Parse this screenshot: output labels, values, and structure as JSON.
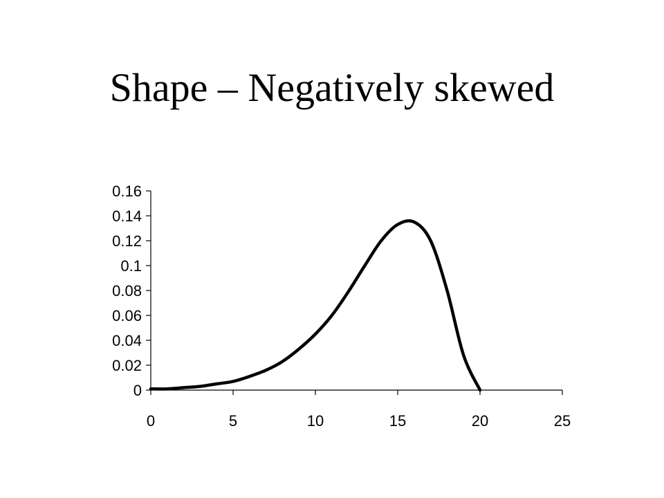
{
  "slide": {
    "title": "Shape – Negatively skewed"
  },
  "chart_data": {
    "type": "line",
    "title": "",
    "xlabel": "",
    "ylabel": "",
    "xlim": [
      0,
      25
    ],
    "ylim": [
      0,
      0.16
    ],
    "x_ticks": [
      0,
      5,
      10,
      15,
      20,
      25
    ],
    "x_tick_labels": [
      "0",
      "5",
      "10",
      "15",
      "20",
      "25"
    ],
    "y_ticks": [
      0,
      0.02,
      0.04,
      0.06,
      0.08,
      0.1,
      0.12,
      0.14,
      0.16
    ],
    "y_tick_labels": [
      "0",
      "0.02",
      "0.04",
      "0.06",
      "0.08",
      "0.1",
      "0.12",
      "0.14",
      "0.16"
    ],
    "grid": false,
    "legend": "none",
    "line_color": "#000000",
    "series": [
      {
        "x": [
          0,
          1,
          2,
          3,
          4,
          5,
          6,
          7,
          8,
          9,
          10,
          11,
          12,
          13,
          14,
          15,
          16,
          17,
          18,
          19,
          20
        ],
        "values": [
          0.001,
          0.001,
          0.002,
          0.003,
          0.005,
          0.007,
          0.011,
          0.016,
          0.023,
          0.033,
          0.045,
          0.06,
          0.079,
          0.1,
          0.12,
          0.133,
          0.135,
          0.12,
          0.08,
          0.028,
          0
        ]
      }
    ]
  }
}
